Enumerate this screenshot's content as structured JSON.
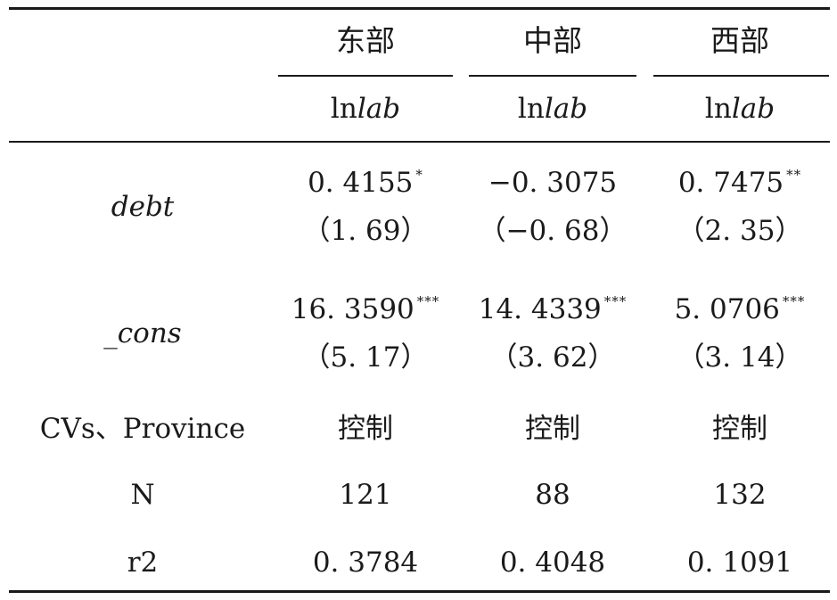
{
  "table": {
    "columns": [
      {
        "group": "东部",
        "dep_prefix": "ln",
        "dep_var": "lab"
      },
      {
        "group": "中部",
        "dep_prefix": "ln",
        "dep_var": "lab"
      },
      {
        "group": "西部",
        "dep_prefix": "ln",
        "dep_var": "lab"
      }
    ],
    "rows": {
      "debt": {
        "label": "debt",
        "coef": [
          "0. 4155",
          "−0. 3075",
          "0. 7475"
        ],
        "stars": [
          "*",
          "",
          "**"
        ],
        "tstat": [
          "（1. 69）",
          "（−0. 68）",
          "（2. 35）"
        ]
      },
      "cons": {
        "label": "_cons",
        "coef": [
          "16. 3590",
          "14. 4339",
          "5. 0706"
        ],
        "stars": [
          "***",
          "***",
          "***"
        ],
        "tstat": [
          "（5. 17）",
          "（3. 62）",
          "（3. 14）"
        ]
      },
      "controls": {
        "label": "CVs、Province",
        "values": [
          "控制",
          "控制",
          "控制"
        ]
      },
      "n": {
        "label": "N",
        "values": [
          "121",
          "88",
          "132"
        ]
      },
      "r2": {
        "label": "r2",
        "values": [
          "0. 3784",
          "0. 4048",
          "0. 1091"
        ]
      }
    }
  }
}
